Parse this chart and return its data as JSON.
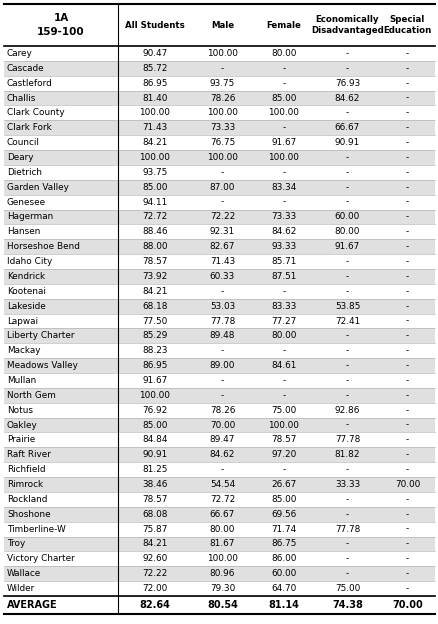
{
  "title_line1": "1A",
  "title_line2": "159-100",
  "columns": [
    "All Students",
    "Male",
    "Female",
    "Economically\nDisadvantaged",
    "Special\nEducation"
  ],
  "rows": [
    [
      "Carey",
      "90.47",
      "100.00",
      "80.00",
      "-",
      "-"
    ],
    [
      "Cascade",
      "85.72",
      "-",
      "-",
      "-",
      "-"
    ],
    [
      "Castleford",
      "86.95",
      "93.75",
      "-",
      "76.93",
      "-"
    ],
    [
      "Challis",
      "81.40",
      "78.26",
      "85.00",
      "84.62",
      "-"
    ],
    [
      "Clark County",
      "100.00",
      "100.00",
      "100.00",
      "-",
      "-"
    ],
    [
      "Clark Fork",
      "71.43",
      "73.33",
      "-",
      "66.67",
      "-"
    ],
    [
      "Council",
      "84.21",
      "76.75",
      "91.67",
      "90.91",
      "-"
    ],
    [
      "Deary",
      "100.00",
      "100.00",
      "100.00",
      "-",
      "-"
    ],
    [
      "Dietrich",
      "93.75",
      "-",
      "-",
      "-",
      "-"
    ],
    [
      "Garden Valley",
      "85.00",
      "87.00",
      "83.34",
      "-",
      "-"
    ],
    [
      "Genesee",
      "94.11",
      "-",
      "-",
      "-",
      "-"
    ],
    [
      "Hagerman",
      "72.72",
      "72.22",
      "73.33",
      "60.00",
      "-"
    ],
    [
      "Hansen",
      "88.46",
      "92.31",
      "84.62",
      "80.00",
      "-"
    ],
    [
      "Horseshoe Bend",
      "88.00",
      "82.67",
      "93.33",
      "91.67",
      "-"
    ],
    [
      "Idaho City",
      "78.57",
      "71.43",
      "85.71",
      "-",
      "-"
    ],
    [
      "Kendrick",
      "73.92",
      "60.33",
      "87.51",
      "-",
      "-"
    ],
    [
      "Kootenai",
      "84.21",
      "-",
      "-",
      "-",
      "-"
    ],
    [
      "Lakeside",
      "68.18",
      "53.03",
      "83.33",
      "53.85",
      "-"
    ],
    [
      "Lapwai",
      "77.50",
      "77.78",
      "77.27",
      "72.41",
      "-"
    ],
    [
      "Liberty Charter",
      "85.29",
      "89.48",
      "80.00",
      "-",
      "-"
    ],
    [
      "Mackay",
      "88.23",
      "-",
      "-",
      "-",
      "-"
    ],
    [
      "Meadows Valley",
      "86.95",
      "89.00",
      "84.61",
      "-",
      "-"
    ],
    [
      "Mullan",
      "91.67",
      "-",
      "-",
      "-",
      "-"
    ],
    [
      "North Gem",
      "100.00",
      "-",
      "-",
      "-",
      "-"
    ],
    [
      "Notus",
      "76.92",
      "78.26",
      "75.00",
      "92.86",
      "-"
    ],
    [
      "Oakley",
      "85.00",
      "70.00",
      "100.00",
      "-",
      "-"
    ],
    [
      "Prairie",
      "84.84",
      "89.47",
      "78.57",
      "77.78",
      "-"
    ],
    [
      "Raft River",
      "90.91",
      "84.62",
      "97.20",
      "81.82",
      "-"
    ],
    [
      "Richfield",
      "81.25",
      "-",
      "-",
      "-",
      "-"
    ],
    [
      "Rimrock",
      "38.46",
      "54.54",
      "26.67",
      "33.33",
      "70.00"
    ],
    [
      "Rockland",
      "78.57",
      "72.72",
      "85.00",
      "-",
      "-"
    ],
    [
      "Shoshone",
      "68.08",
      "66.67",
      "69.56",
      "-",
      "-"
    ],
    [
      "Timberline-W",
      "75.87",
      "80.00",
      "71.74",
      "77.78",
      "-"
    ],
    [
      "Troy",
      "84.21",
      "81.67",
      "86.75",
      "-",
      "-"
    ],
    [
      "Victory Charter",
      "92.60",
      "100.00",
      "86.00",
      "-",
      "-"
    ],
    [
      "Wallace",
      "72.22",
      "80.96",
      "60.00",
      "-",
      "-"
    ],
    [
      "Wilder",
      "72.00",
      "79.30",
      "64.70",
      "75.00",
      "-"
    ]
  ],
  "average_row": [
    "AVERAGE",
    "82.64",
    "80.54",
    "81.14",
    "74.38",
    "70.00"
  ],
  "shaded_color": "#e0e0e0",
  "white_color": "#ffffff",
  "line_color": "#aaaaaa",
  "border_color": "#000000"
}
